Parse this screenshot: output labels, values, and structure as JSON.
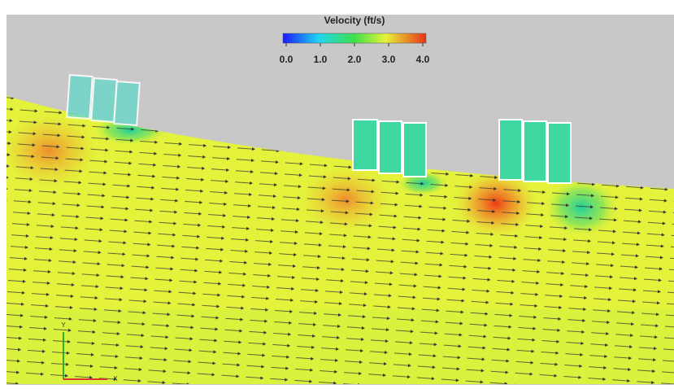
{
  "colorbar": {
    "title": "Velocity (ft/s)",
    "ticks": [
      {
        "value": 0,
        "label": "0.0"
      },
      {
        "value": 1,
        "label": "1.0"
      },
      {
        "value": 2,
        "label": "2.0"
      },
      {
        "value": 3,
        "label": "3.0"
      },
      {
        "value": 4,
        "label": "4.0"
      }
    ]
  },
  "axes_triad": {
    "y_label": "Y",
    "x_label": "X"
  }
}
